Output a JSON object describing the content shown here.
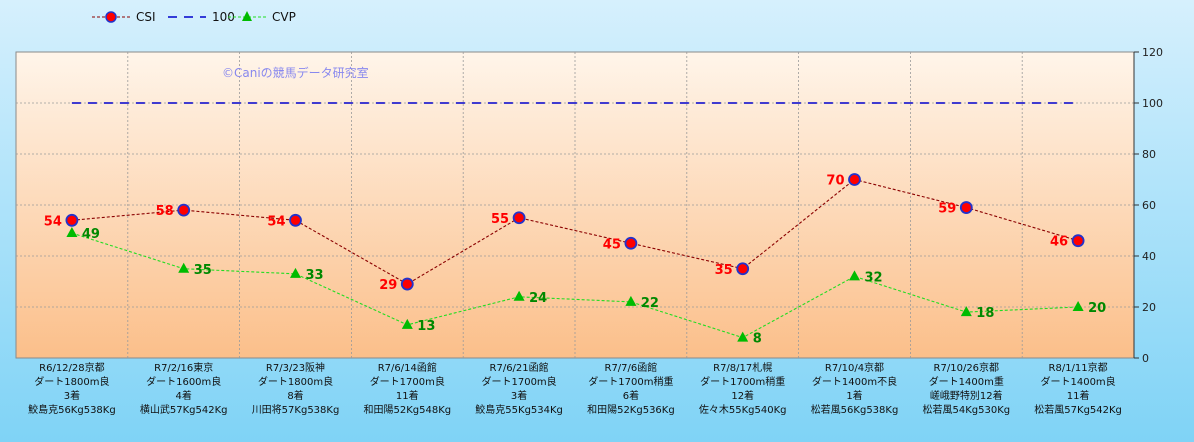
{
  "chart_data": {
    "type": "line",
    "title": "",
    "xlabel": "",
    "ylabel": "",
    "ylim": [
      0,
      120
    ],
    "yticks": [
      0,
      20,
      40,
      60,
      80,
      100,
      120
    ],
    "y_axis_side": "right",
    "grid": true,
    "legend_position": "top-left",
    "watermark": "©Caniの競馬データ研究室",
    "categories": [
      [
        "R6/12/28京都",
        "ダート1800m良",
        "3着",
        "鮫島克56Kg538Kg"
      ],
      [
        "R7/2/16東京",
        "ダート1600m良",
        "4着",
        "横山武57Kg542Kg"
      ],
      [
        "R7/3/23阪神",
        "ダート1800m良",
        "8着",
        "川田将57Kg538Kg"
      ],
      [
        "R7/6/14函館",
        "ダート1700m良",
        "11着",
        "和田陽52Kg548Kg"
      ],
      [
        "R7/6/21函館",
        "ダート1700m良",
        "3着",
        "鮫島克55Kg534Kg"
      ],
      [
        "R7/7/6函館",
        "ダート1700m稍重",
        "6着",
        "和田陽52Kg536Kg"
      ],
      [
        "R7/8/17札幌",
        "ダート1700m稍重",
        "12着",
        "佐々木55Kg540Kg"
      ],
      [
        "R7/10/4京都",
        "ダート1400m不良",
        "1着",
        "松若風56Kg538Kg"
      ],
      [
        "R7/10/26京都",
        "ダート1400m重",
        "嵯峨野特別12着",
        "松若風54Kg530Kg"
      ],
      [
        "R8/1/11京都",
        "ダート1400m良",
        "11着",
        "松若風57Kg542Kg"
      ]
    ],
    "series": [
      {
        "name": "CSI",
        "values": [
          54,
          58,
          54,
          29,
          55,
          45,
          35,
          70,
          59,
          46
        ],
        "color": "#8b0000",
        "marker": "circle",
        "marker_fill": "#ff0000",
        "marker_stroke": "#2233cc",
        "label_color": "#ff0000",
        "dash": "dashed"
      },
      {
        "name": "100",
        "values": [
          100,
          100,
          100,
          100,
          100,
          100,
          100,
          100,
          100,
          100
        ],
        "color": "#0000cc",
        "marker": "none",
        "dash": "long-dash"
      },
      {
        "name": "CVP",
        "values": [
          49,
          35,
          33,
          13,
          24,
          22,
          8,
          32,
          18,
          20
        ],
        "color": "#22dd22",
        "marker": "triangle",
        "marker_fill": "#00bb00",
        "label_color": "#008800",
        "dash": "dashed"
      }
    ]
  }
}
